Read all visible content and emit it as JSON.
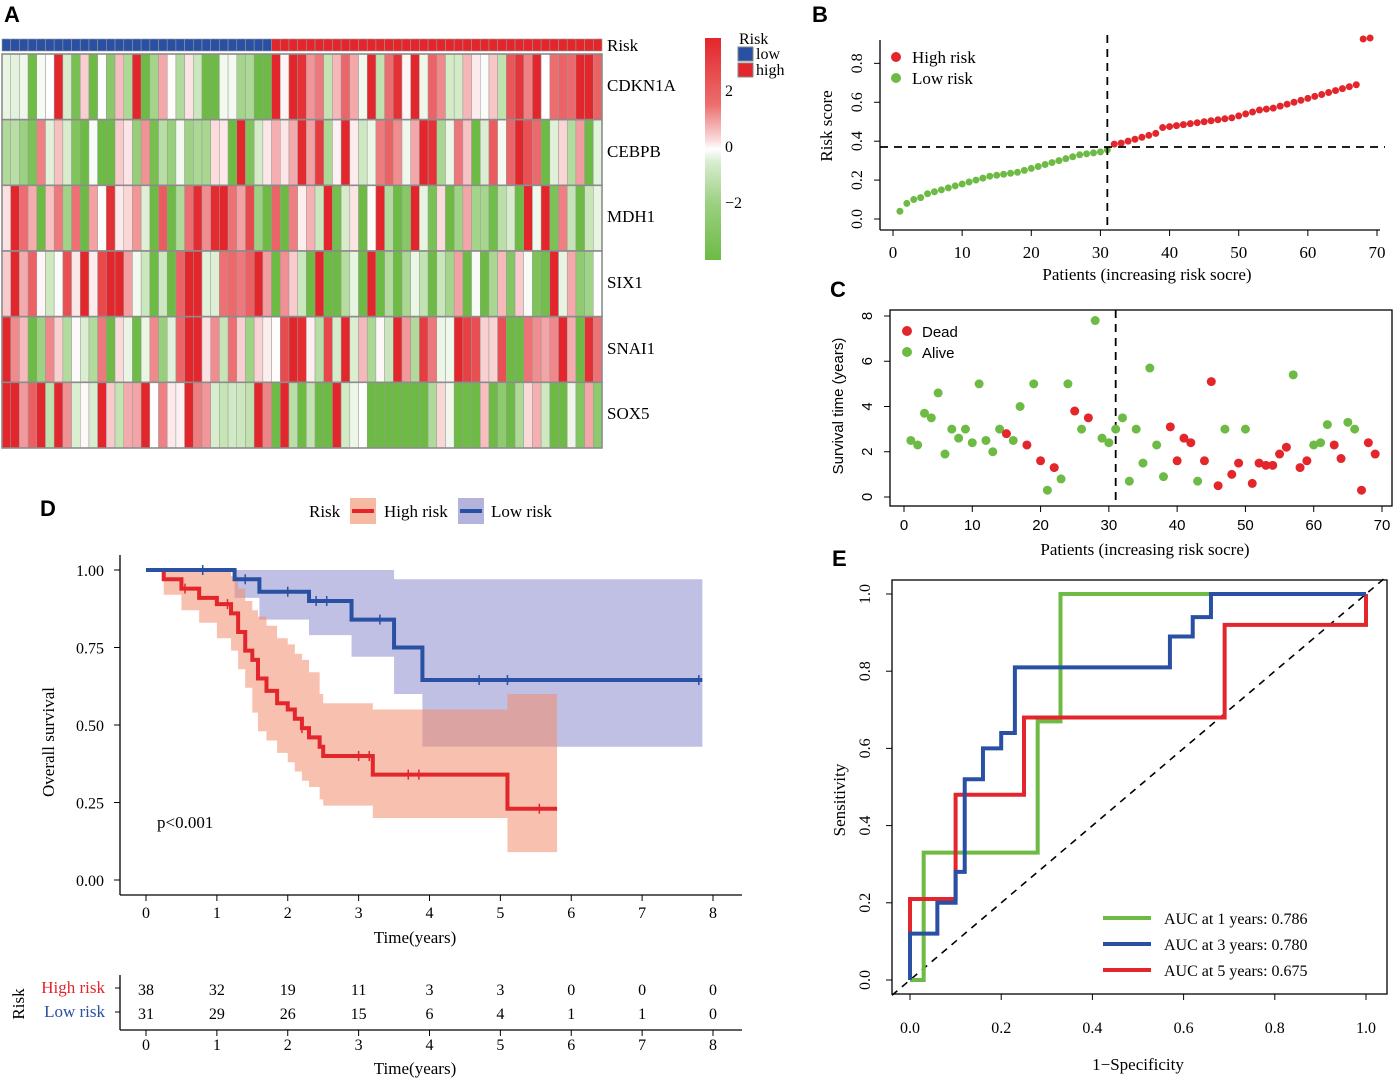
{
  "panels": {
    "a": "A",
    "b": "B",
    "c": "C",
    "d": "D",
    "e": "E"
  },
  "colors": {
    "high": "#e3262b",
    "low": "#2950a3",
    "green": "#6dbb45",
    "heat_low": "#6dbb45",
    "heat_mid": "#ffffff",
    "heat_high": "#e3262b",
    "km_high_band": "#f6b9a2",
    "km_low_band": "#b3b3dc"
  },
  "chart_data": [
    {
      "id": "heatmap",
      "type": "heatmap",
      "annotation_label": "Risk",
      "rows": [
        "CDKN1A",
        "CEBPB",
        "MDH1",
        "SIX1",
        "SNAI1",
        "SOX5"
      ],
      "n_samples": 69,
      "n_low": 31,
      "n_high": 38,
      "legend": {
        "title": "Risk",
        "items": [
          "low",
          "high"
        ]
      },
      "colorbar_ticks": [
        "2",
        "0",
        "−2"
      ],
      "colorbar_values": [
        2,
        0,
        -2
      ],
      "value_range": [
        -3,
        3
      ]
    },
    {
      "id": "risk_score",
      "type": "scatter",
      "ylabel": "Risk score",
      "xlabel": "Patients (increasing risk socre)",
      "xlim": [
        0,
        70
      ],
      "ylim": [
        0,
        0.92
      ],
      "xticks": [
        0,
        10,
        20,
        30,
        40,
        50,
        60,
        70
      ],
      "yticks": [
        "0.0",
        "0.2",
        "0.4",
        "0.6",
        "0.8"
      ],
      "cutoff_x": 31,
      "cutoff_y": 0.37,
      "legend": [
        "High risk",
        "Low risk"
      ],
      "values": [
        0.04,
        0.08,
        0.1,
        0.11,
        0.13,
        0.14,
        0.15,
        0.16,
        0.17,
        0.18,
        0.19,
        0.2,
        0.21,
        0.22,
        0.225,
        0.23,
        0.235,
        0.24,
        0.25,
        0.26,
        0.27,
        0.28,
        0.29,
        0.3,
        0.31,
        0.32,
        0.33,
        0.335,
        0.34,
        0.345,
        0.355,
        0.385,
        0.39,
        0.4,
        0.41,
        0.42,
        0.43,
        0.44,
        0.47,
        0.475,
        0.48,
        0.485,
        0.49,
        0.495,
        0.5,
        0.505,
        0.51,
        0.515,
        0.52,
        0.53,
        0.54,
        0.55,
        0.56,
        0.565,
        0.57,
        0.58,
        0.59,
        0.6,
        0.61,
        0.62,
        0.63,
        0.64,
        0.65,
        0.66,
        0.67,
        0.68,
        0.69,
        0.925,
        0.93
      ]
    },
    {
      "id": "survival_time",
      "type": "scatter",
      "ylabel": "Survival time (years)",
      "xlabel": "Patients (increasing risk socre)",
      "xlim": [
        0,
        70
      ],
      "ylim": [
        0,
        8
      ],
      "xticks": [
        0,
        10,
        20,
        30,
        40,
        50,
        60,
        70
      ],
      "yticks": [
        "0",
        "2",
        "4",
        "6",
        "8"
      ],
      "cutoff_x": 31,
      "legend": [
        "Dead",
        "Alive"
      ],
      "points": [
        [
          1,
          2.5,
          0
        ],
        [
          2,
          2.3,
          0
        ],
        [
          3,
          3.7,
          0
        ],
        [
          4,
          3.5,
          0
        ],
        [
          5,
          4.6,
          0
        ],
        [
          6,
          1.9,
          0
        ],
        [
          7,
          3.0,
          0
        ],
        [
          8,
          2.6,
          0
        ],
        [
          9,
          3.0,
          0
        ],
        [
          10,
          2.4,
          0
        ],
        [
          11,
          5.0,
          0
        ],
        [
          12,
          2.5,
          0
        ],
        [
          13,
          2.0,
          0
        ],
        [
          14,
          3.0,
          0
        ],
        [
          15,
          2.8,
          1
        ],
        [
          16,
          2.5,
          0
        ],
        [
          17,
          4.0,
          0
        ],
        [
          18,
          2.3,
          1
        ],
        [
          19,
          5.0,
          0
        ],
        [
          20,
          1.6,
          1
        ],
        [
          21,
          0.3,
          0
        ],
        [
          22,
          1.3,
          1
        ],
        [
          23,
          0.8,
          0
        ],
        [
          24,
          5.0,
          0
        ],
        [
          25,
          3.8,
          1
        ],
        [
          26,
          3.0,
          0
        ],
        [
          27,
          3.5,
          1
        ],
        [
          28,
          7.8,
          0
        ],
        [
          29,
          2.6,
          0
        ],
        [
          30,
          2.4,
          0
        ],
        [
          31,
          3.0,
          0
        ],
        [
          32,
          3.5,
          0
        ],
        [
          33,
          0.7,
          0
        ],
        [
          34,
          3.0,
          0
        ],
        [
          35,
          1.5,
          0
        ],
        [
          36,
          5.7,
          0
        ],
        [
          37,
          2.3,
          0
        ],
        [
          38,
          0.9,
          0
        ],
        [
          39,
          3.1,
          1
        ],
        [
          40,
          1.6,
          1
        ],
        [
          41,
          2.6,
          1
        ],
        [
          42,
          2.4,
          1
        ],
        [
          43,
          0.7,
          0
        ],
        [
          44,
          1.6,
          1
        ],
        [
          45,
          5.1,
          1
        ],
        [
          46,
          0.5,
          1
        ],
        [
          47,
          3.0,
          0
        ],
        [
          48,
          1.0,
          1
        ],
        [
          49,
          1.5,
          1
        ],
        [
          50,
          3.0,
          0
        ],
        [
          51,
          0.6,
          1
        ],
        [
          52,
          1.5,
          1
        ],
        [
          53,
          1.4,
          1
        ],
        [
          54,
          1.4,
          1
        ],
        [
          55,
          1.9,
          1
        ],
        [
          56,
          2.2,
          1
        ],
        [
          57,
          5.4,
          0
        ],
        [
          58,
          1.3,
          1
        ],
        [
          59,
          1.6,
          1
        ],
        [
          60,
          2.3,
          0
        ],
        [
          61,
          2.4,
          0
        ],
        [
          62,
          3.2,
          0
        ],
        [
          63,
          2.3,
          1
        ],
        [
          64,
          1.7,
          1
        ],
        [
          65,
          3.3,
          0
        ],
        [
          66,
          3.0,
          0
        ],
        [
          67,
          0.3,
          1
        ],
        [
          68,
          2.4,
          1
        ],
        [
          69,
          1.9,
          1
        ]
      ]
    },
    {
      "id": "km",
      "type": "line",
      "legend_title": "Risk",
      "legend": [
        "High risk",
        "Low risk"
      ],
      "ylabel": "Overall survival",
      "xlabel": "Time(years)",
      "xlim": [
        0,
        8
      ],
      "ylim": [
        0,
        1
      ],
      "xticks": [
        "0",
        "1",
        "2",
        "3",
        "4",
        "5",
        "6",
        "7",
        "8"
      ],
      "yticks": [
        "0.00",
        "0.25",
        "0.50",
        "0.75",
        "1.00"
      ],
      "pvalue": "p<0.001",
      "series": [
        {
          "name": "High risk",
          "x": [
            0,
            0.25,
            0.5,
            0.75,
            1.0,
            1.2,
            1.3,
            1.4,
            1.5,
            1.58,
            1.7,
            1.85,
            2.0,
            2.1,
            2.2,
            2.3,
            2.45,
            2.5,
            2.65,
            3.2,
            5.1,
            5.8
          ],
          "y": [
            1.0,
            0.97,
            0.94,
            0.91,
            0.89,
            0.86,
            0.8,
            0.74,
            0.71,
            0.65,
            0.61,
            0.57,
            0.55,
            0.52,
            0.49,
            0.46,
            0.43,
            0.4,
            0.4,
            0.34,
            0.23,
            0.23
          ],
          "lower": [
            1.0,
            0.92,
            0.87,
            0.83,
            0.78,
            0.74,
            0.68,
            0.62,
            0.54,
            0.48,
            0.45,
            0.41,
            0.38,
            0.35,
            0.32,
            0.3,
            0.26,
            0.24,
            0.24,
            0.2,
            0.09,
            0.09
          ],
          "upper": [
            1.0,
            1.0,
            1.0,
            1.0,
            1.0,
            0.98,
            0.94,
            0.9,
            0.87,
            0.85,
            0.82,
            0.78,
            0.76,
            0.73,
            0.71,
            0.67,
            0.6,
            0.57,
            0.57,
            0.55,
            0.6,
            0.6
          ]
        },
        {
          "name": "Low risk",
          "x": [
            0,
            1.25,
            1.6,
            2.3,
            2.9,
            3.5,
            3.9,
            7.85
          ],
          "y": [
            1.0,
            0.97,
            0.93,
            0.9,
            0.84,
            0.75,
            0.645,
            0.645
          ],
          "lower": [
            1.0,
            0.91,
            0.84,
            0.79,
            0.72,
            0.6,
            0.43,
            0.43
          ],
          "upper": [
            1.0,
            1.0,
            1.0,
            1.0,
            1.0,
            0.97,
            0.97,
            0.97
          ]
        }
      ],
      "risk_table": {
        "title": "Risk",
        "rows": [
          {
            "name": "High risk",
            "counts": [
              "38",
              "32",
              "19",
              "11",
              "3",
              "3",
              "0",
              "0",
              "0"
            ]
          },
          {
            "name": "Low risk",
            "counts": [
              "31",
              "29",
              "26",
              "15",
              "6",
              "4",
              "1",
              "1",
              "0"
            ]
          }
        ],
        "xlabel": "Time(years)"
      }
    },
    {
      "id": "roc",
      "type": "line",
      "ylabel": "Sensitivity",
      "xlabel": "1−Specificity",
      "xlim": [
        0,
        1
      ],
      "ylim": [
        0,
        1
      ],
      "xticks": [
        "0.0",
        "0.2",
        "0.4",
        "0.6",
        "0.8",
        "1.0"
      ],
      "yticks": [
        "0.0",
        "0.2",
        "0.4",
        "0.6",
        "0.8",
        "1.0"
      ],
      "series": [
        {
          "name": "AUC at 1 years: 0.786",
          "x": [
            0,
            0.03,
            0.03,
            0.28,
            0.28,
            0.33,
            0.33,
            0.7,
            0.7,
            1.0
          ],
          "y": [
            0,
            0,
            0.33,
            0.33,
            0.67,
            0.67,
            1.0,
            1.0,
            1.0,
            1.0
          ]
        },
        {
          "name": "AUC at 3 years: 0.780",
          "x": [
            0,
            0,
            0.06,
            0.06,
            0.1,
            0.1,
            0.12,
            0.12,
            0.16,
            0.16,
            0.2,
            0.2,
            0.23,
            0.23,
            0.57,
            0.57,
            0.62,
            0.62,
            0.66,
            0.66,
            1.0
          ],
          "y": [
            0,
            0.12,
            0.12,
            0.2,
            0.2,
            0.28,
            0.28,
            0.52,
            0.52,
            0.6,
            0.6,
            0.64,
            0.64,
            0.81,
            0.81,
            0.89,
            0.89,
            0.94,
            0.94,
            1.0,
            1.0
          ]
        },
        {
          "name": "AUC at 5 years: 0.675",
          "x": [
            0,
            0,
            0.1,
            0.1,
            0.12,
            0.12,
            0.25,
            0.25,
            0.69,
            0.69,
            1.0,
            1.0
          ],
          "y": [
            0,
            0.21,
            0.21,
            0.48,
            0.48,
            0.48,
            0.48,
            0.68,
            0.68,
            0.92,
            0.92,
            1.0
          ]
        }
      ]
    }
  ]
}
